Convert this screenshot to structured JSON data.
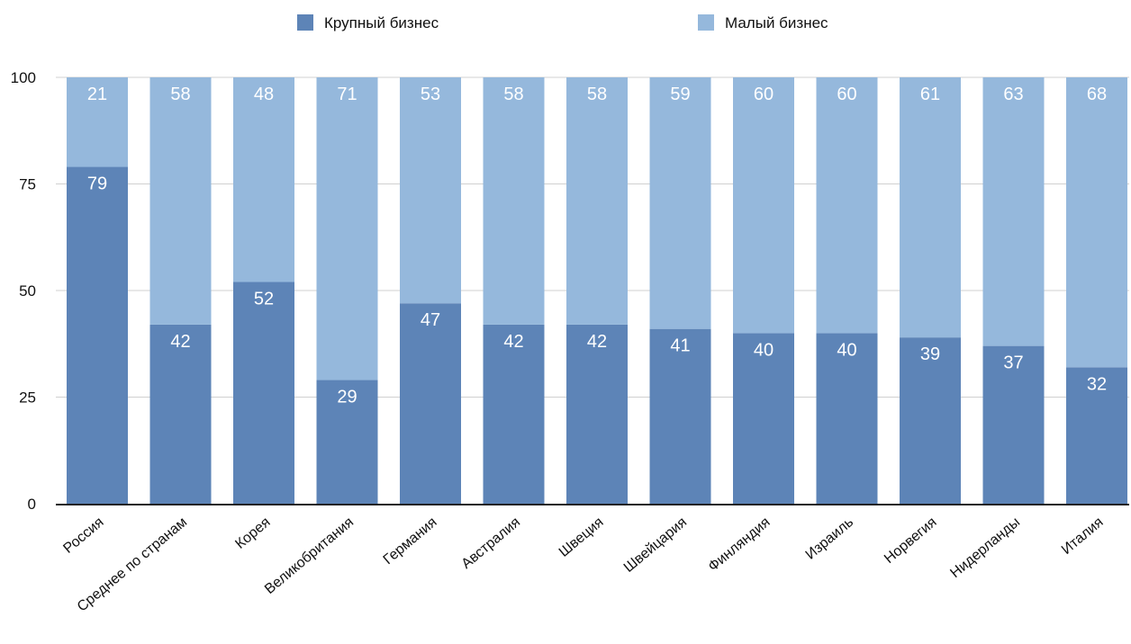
{
  "chart_data": {
    "type": "bar",
    "stacked": true,
    "categories": [
      "Россия",
      "Среднее по странам",
      "Корея",
      "Великобритания",
      "Германия",
      "Австралия",
      "Швеция",
      "Швейцария",
      "Финляндия",
      "Израиль",
      "Норвегия",
      "Нидерланды",
      "Италия"
    ],
    "series": [
      {
        "name": "Крупный бизнес",
        "color": "#5d84b7",
        "values": [
          79,
          42,
          52,
          29,
          47,
          42,
          42,
          41,
          40,
          40,
          39,
          37,
          32
        ]
      },
      {
        "name": "Малый бизнес",
        "color": "#95b8dc",
        "values": [
          21,
          58,
          48,
          71,
          53,
          58,
          58,
          59,
          60,
          60,
          61,
          63,
          68
        ]
      }
    ],
    "ylim": [
      0,
      100
    ],
    "yticks": [
      "0",
      "25",
      "50",
      "75",
      "100"
    ],
    "grid": true,
    "legend_position": "top",
    "title": "",
    "xlabel": "",
    "ylabel": ""
  }
}
